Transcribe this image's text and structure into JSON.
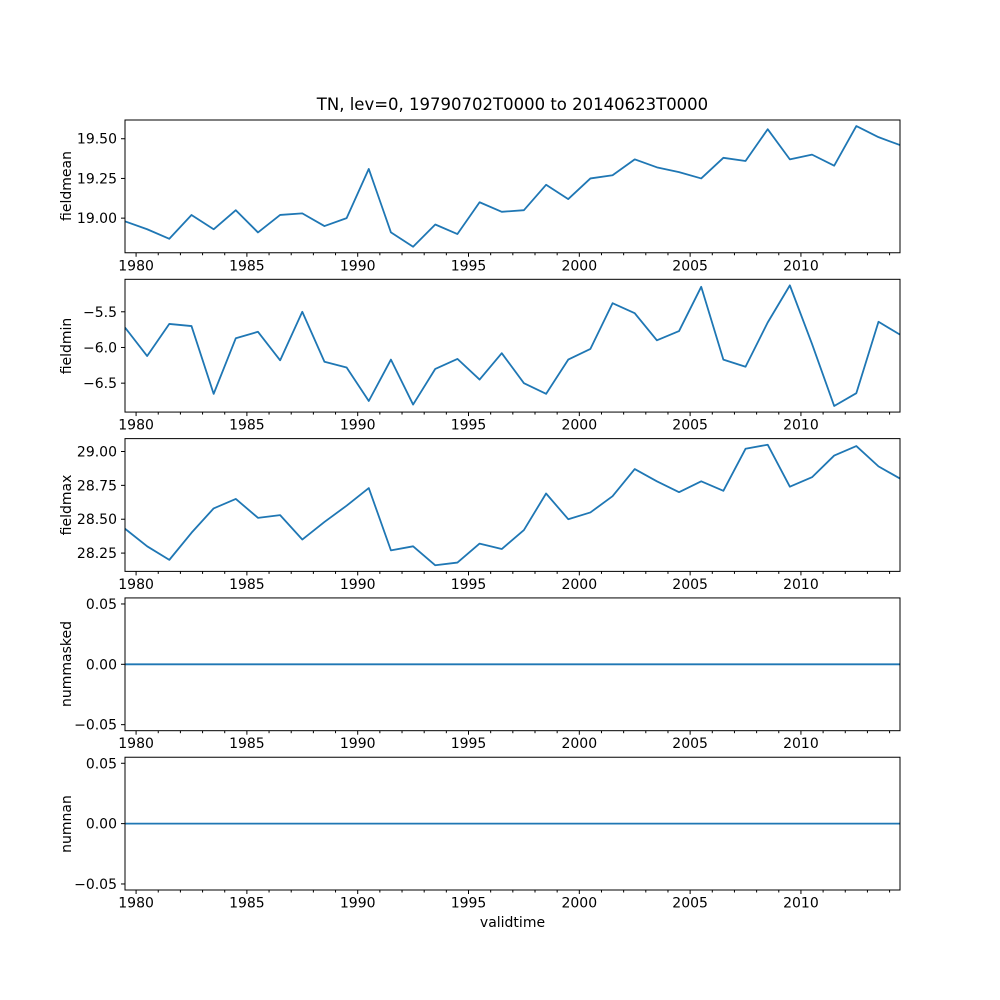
{
  "figure": {
    "background": "#ffffff",
    "text_color": "#000000",
    "spine_color": "#000000"
  },
  "chart_data": {
    "type": "line",
    "title": "TN, lev=0, 19790702T0000 to 20140623T0000",
    "xlabel": "validtime",
    "line_color": "#1f77b4",
    "legend": "none",
    "grid": false,
    "xlim": [
      1979.5,
      2014.47
    ],
    "xticks_major": [
      1980,
      1985,
      1990,
      1995,
      2000,
      2005,
      2010
    ],
    "xtick_labels": [
      "1980",
      "1985",
      "1990",
      "1995",
      "2000",
      "2005",
      "2010"
    ],
    "xticks_minor": [
      1981,
      1982,
      1983,
      1984,
      1986,
      1987,
      1988,
      1989,
      1991,
      1992,
      1993,
      1994,
      1996,
      1997,
      1998,
      1999,
      2001,
      2002,
      2003,
      2004,
      2006,
      2007,
      2008,
      2009,
      2011,
      2012,
      2013,
      2014
    ],
    "x": [
      1979.5,
      1980.5,
      1981.5,
      1982.5,
      1983.5,
      1984.5,
      1985.5,
      1986.5,
      1987.5,
      1988.5,
      1989.5,
      1990.5,
      1991.5,
      1992.5,
      1993.5,
      1994.5,
      1995.5,
      1996.5,
      1997.5,
      1998.5,
      1999.5,
      2000.5,
      2001.5,
      2002.5,
      2003.5,
      2004.5,
      2005.5,
      2006.5,
      2007.5,
      2008.5,
      2009.5,
      2010.5,
      2011.5,
      2012.5,
      2013.5,
      2014.47
    ],
    "subplots": [
      {
        "ylabel": "fieldmean",
        "ylim": [
          18.782,
          19.618
        ],
        "yticks": [
          19.0,
          19.25,
          19.5
        ],
        "ytick_labels": [
          "19.00",
          "19.25",
          "19.50"
        ],
        "values": [
          18.98,
          18.93,
          18.87,
          19.02,
          18.93,
          19.05,
          18.91,
          19.02,
          19.03,
          18.95,
          19.0,
          19.31,
          18.91,
          18.82,
          18.96,
          18.9,
          19.1,
          19.04,
          19.05,
          19.21,
          19.12,
          19.25,
          19.27,
          19.37,
          19.32,
          19.29,
          19.25,
          19.38,
          19.36,
          19.56,
          19.37,
          19.4,
          19.33,
          19.58,
          19.51,
          19.46
        ]
      },
      {
        "ylabel": "fieldmin",
        "ylim": [
          -6.905,
          -5.045
        ],
        "yticks": [
          -6.5,
          -6.0,
          -5.5
        ],
        "ytick_labels": [
          "−6.5",
          "−6.0",
          "−5.5"
        ],
        "values": [
          -5.72,
          -6.12,
          -5.67,
          -5.7,
          -6.65,
          -5.87,
          -5.78,
          -6.18,
          -5.5,
          -6.2,
          -6.28,
          -6.75,
          -6.17,
          -6.8,
          -6.3,
          -6.16,
          -6.45,
          -6.08,
          -6.5,
          -6.65,
          -6.17,
          -6.02,
          -5.38,
          -5.52,
          -5.9,
          -5.77,
          -5.15,
          -6.17,
          -6.27,
          -5.65,
          -5.13,
          -5.95,
          -6.82,
          -6.64,
          -5.64,
          -5.82
        ]
      },
      {
        "ylabel": "fieldmax",
        "ylim": [
          28.115,
          29.095
        ],
        "yticks": [
          28.25,
          28.5,
          28.75,
          29.0
        ],
        "ytick_labels": [
          "28.25",
          "28.50",
          "28.75",
          "29.00"
        ],
        "values": [
          28.43,
          28.3,
          28.2,
          28.4,
          28.58,
          28.65,
          28.51,
          28.53,
          28.35,
          28.48,
          28.6,
          28.73,
          28.27,
          28.3,
          28.16,
          28.18,
          28.32,
          28.28,
          28.42,
          28.69,
          28.5,
          28.55,
          28.67,
          28.87,
          28.78,
          28.7,
          28.78,
          28.71,
          29.02,
          29.05,
          28.74,
          28.81,
          28.97,
          29.04,
          28.89,
          28.8
        ]
      },
      {
        "ylabel": "nummasked",
        "ylim": [
          -0.055,
          0.055
        ],
        "yticks": [
          -0.05,
          0.0,
          0.05
        ],
        "ytick_labels": [
          "−0.05",
          "0.00",
          "0.05"
        ],
        "values": [
          0,
          0,
          0,
          0,
          0,
          0,
          0,
          0,
          0,
          0,
          0,
          0,
          0,
          0,
          0,
          0,
          0,
          0,
          0,
          0,
          0,
          0,
          0,
          0,
          0,
          0,
          0,
          0,
          0,
          0,
          0,
          0,
          0,
          0,
          0,
          0
        ]
      },
      {
        "ylabel": "numnan",
        "ylim": [
          -0.055,
          0.055
        ],
        "yticks": [
          -0.05,
          0.0,
          0.05
        ],
        "ytick_labels": [
          "−0.05",
          "0.00",
          "0.05"
        ],
        "values": [
          0,
          0,
          0,
          0,
          0,
          0,
          0,
          0,
          0,
          0,
          0,
          0,
          0,
          0,
          0,
          0,
          0,
          0,
          0,
          0,
          0,
          0,
          0,
          0,
          0,
          0,
          0,
          0,
          0,
          0,
          0,
          0,
          0,
          0,
          0,
          0
        ]
      }
    ]
  }
}
